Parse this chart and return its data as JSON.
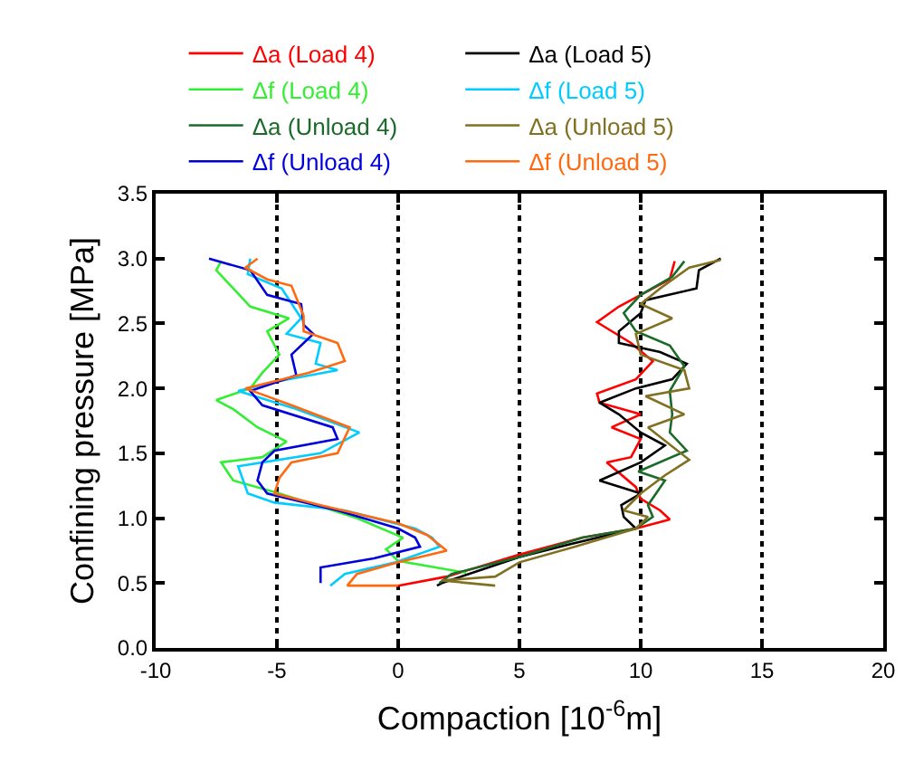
{
  "chart_data": {
    "type": "line",
    "xlabel": "Compaction [10$^{-6}$m]",
    "ylabel": "Confining pressure [MPa]",
    "xlim": [
      -10,
      20
    ],
    "xticks": [
      -10,
      -5,
      0,
      5,
      10,
      15,
      20
    ],
    "ylim": [
      0,
      3.5
    ],
    "yticks": [
      {
        "value": 0,
        "label": "0.0"
      },
      {
        "value": 0.5,
        "label": "0.5"
      },
      {
        "value": 1,
        "label": "1.0"
      },
      {
        "value": 1.5,
        "label": "1.5"
      },
      {
        "value": 2,
        "label": "2.0"
      },
      {
        "value": 2.5,
        "label": "2.5"
      },
      {
        "value": 3,
        "label": "3.0"
      },
      {
        "value": 3.5,
        "label": "3.5"
      }
    ],
    "grid": "x",
    "legend": "top",
    "marker": "none",
    "line_style": "solid",
    "series": [
      {
        "name": "Δa (Load 4)",
        "color": "#ff0000",
        "x": [
          0,
          2,
          5,
          7.6,
          9.8,
          11.2,
          10.8,
          10.0,
          9.8,
          8.6,
          9.6,
          10.0,
          8.8,
          10.0,
          8.3,
          8.2,
          9.8,
          10.5,
          9.6,
          8.2,
          9.1,
          10.0,
          11.2,
          11.4
        ],
        "values": [
          0.48,
          0.55,
          0.72,
          0.85,
          0.92,
          0.99,
          1.06,
          1.15,
          1.24,
          1.43,
          1.47,
          1.61,
          1.7,
          1.8,
          1.89,
          1.96,
          2.07,
          2.21,
          2.35,
          2.51,
          2.63,
          2.72,
          2.84,
          2.98
        ]
      },
      {
        "name": "Δa (Load 5)",
        "color": "#000000",
        "x": [
          1.6,
          1.8,
          5,
          7.1,
          9.8,
          9.3,
          9.2,
          10.0,
          8.3,
          10.0,
          11.0,
          10.0,
          9.1,
          8.3,
          9.8,
          11.3,
          11.9,
          10.8,
          9.1,
          9.1,
          10.0,
          10.2,
          12.3,
          12.4,
          13.3
        ],
        "values": [
          0.48,
          0.5,
          0.7,
          0.8,
          0.92,
          1.01,
          1.1,
          1.19,
          1.29,
          1.43,
          1.56,
          1.66,
          1.8,
          1.89,
          2.0,
          2.07,
          2.19,
          2.28,
          2.35,
          2.44,
          2.58,
          2.68,
          2.77,
          2.91,
          3.0
        ]
      },
      {
        "name": "Δf (Load 4)",
        "color": "#33ee33",
        "x": [
          2.8,
          0,
          -0.5,
          0.2,
          -1.7,
          -4.9,
          -6.8,
          -7.3,
          -5.6,
          -4.6,
          -5.8,
          -6.8,
          -7.5,
          -6.1,
          -5.6,
          -4.9,
          -5.4,
          -4.5,
          -6.1,
          -6.8,
          -7.5,
          -7.3
        ],
        "values": [
          0.58,
          0.67,
          0.76,
          0.85,
          1.0,
          1.19,
          1.29,
          1.43,
          1.47,
          1.59,
          1.7,
          1.84,
          1.91,
          2.0,
          2.12,
          2.26,
          2.44,
          2.54,
          2.63,
          2.77,
          2.91,
          2.98
        ]
      },
      {
        "name": "Δf (Load 5)",
        "color": "#00ccff",
        "x": [
          -2.8,
          -2.2,
          -0.1,
          1.7,
          1.4,
          0.7,
          -2.2,
          -5.1,
          -6.2,
          -6.6,
          -3.2,
          -1.6,
          -4.2,
          -6.6,
          -5.1,
          -2.5,
          -3.4,
          -3.2,
          -4.6,
          -4.0,
          -4.8,
          -6.2,
          -6.1
        ],
        "values": [
          0.48,
          0.57,
          0.66,
          0.78,
          0.85,
          0.92,
          1.06,
          1.12,
          1.19,
          1.4,
          1.5,
          1.66,
          1.84,
          1.98,
          2.05,
          2.14,
          2.19,
          2.35,
          2.42,
          2.54,
          2.77,
          2.88,
          3.0
        ]
      },
      {
        "name": "Δa (Unload 4)",
        "color": "#1a6b2a",
        "x": [
          1.7,
          2.2,
          5,
          7.6,
          9.8,
          10.5,
          10.3,
          11.0,
          9.9,
          11.9,
          11.2,
          11.3,
          11.2,
          11.8,
          11.2,
          9.8,
          9.3,
          10.0,
          11.3,
          11.8
        ],
        "values": [
          0.5,
          0.57,
          0.7,
          0.85,
          0.92,
          1.01,
          1.1,
          1.29,
          1.36,
          1.52,
          1.66,
          1.8,
          1.98,
          2.17,
          2.33,
          2.44,
          2.58,
          2.72,
          2.86,
          2.98
        ]
      },
      {
        "name": "Δa (Unload 5)",
        "color": "#807020",
        "x": [
          4.0,
          1.8,
          4.0,
          5,
          7.3,
          9.8,
          10.3,
          9.3,
          10.0,
          11.0,
          12.0,
          10.3,
          11.8,
          10.2,
          12.0,
          11.8,
          10.0,
          9.8,
          11.3,
          10.0,
          10.8,
          12.0,
          13.3
        ],
        "values": [
          0.48,
          0.52,
          0.55,
          0.66,
          0.78,
          0.92,
          1.01,
          1.06,
          1.19,
          1.33,
          1.45,
          1.7,
          1.8,
          1.94,
          2.0,
          2.14,
          2.26,
          2.42,
          2.54,
          2.65,
          2.77,
          2.93,
          2.99
        ]
      },
      {
        "name": "Δf (Unload 4)",
        "color": "#0000dd",
        "x": [
          -3.2,
          -3.2,
          -1.0,
          0.9,
          0.7,
          0,
          -2.5,
          -5.4,
          -5.8,
          -5.6,
          -5.1,
          -2.5,
          -2.7,
          -5.6,
          -6.1,
          -4.2,
          -4.4,
          -3.5,
          -3.9,
          -4.0,
          -5.4,
          -6.1,
          -7.8
        ],
        "values": [
          0.5,
          0.62,
          0.69,
          0.78,
          0.85,
          0.92,
          1.06,
          1.19,
          1.29,
          1.43,
          1.52,
          1.61,
          1.7,
          1.87,
          1.98,
          2.1,
          2.26,
          2.42,
          2.49,
          2.65,
          2.72,
          2.91,
          3.0
        ]
      },
      {
        "name": "Δf (Unload 5)",
        "color": "#ff6a10",
        "x": [
          0,
          -2.1,
          -1.7,
          0,
          2.0,
          1.2,
          0,
          -3.2,
          -5.1,
          -4.9,
          -4.4,
          -2.5,
          -2.0,
          -4.4,
          -6.3,
          -3.7,
          -2.2,
          -2.5,
          -3.9,
          -3.9,
          -4.4,
          -5.4,
          -6.3,
          -5.8
        ],
        "values": [
          0.48,
          0.48,
          0.57,
          0.66,
          0.75,
          0.87,
          0.96,
          1.1,
          1.19,
          1.31,
          1.43,
          1.5,
          1.7,
          1.87,
          2.0,
          2.12,
          2.21,
          2.35,
          2.44,
          2.56,
          2.79,
          2.84,
          2.93,
          3.0
        ]
      }
    ]
  }
}
